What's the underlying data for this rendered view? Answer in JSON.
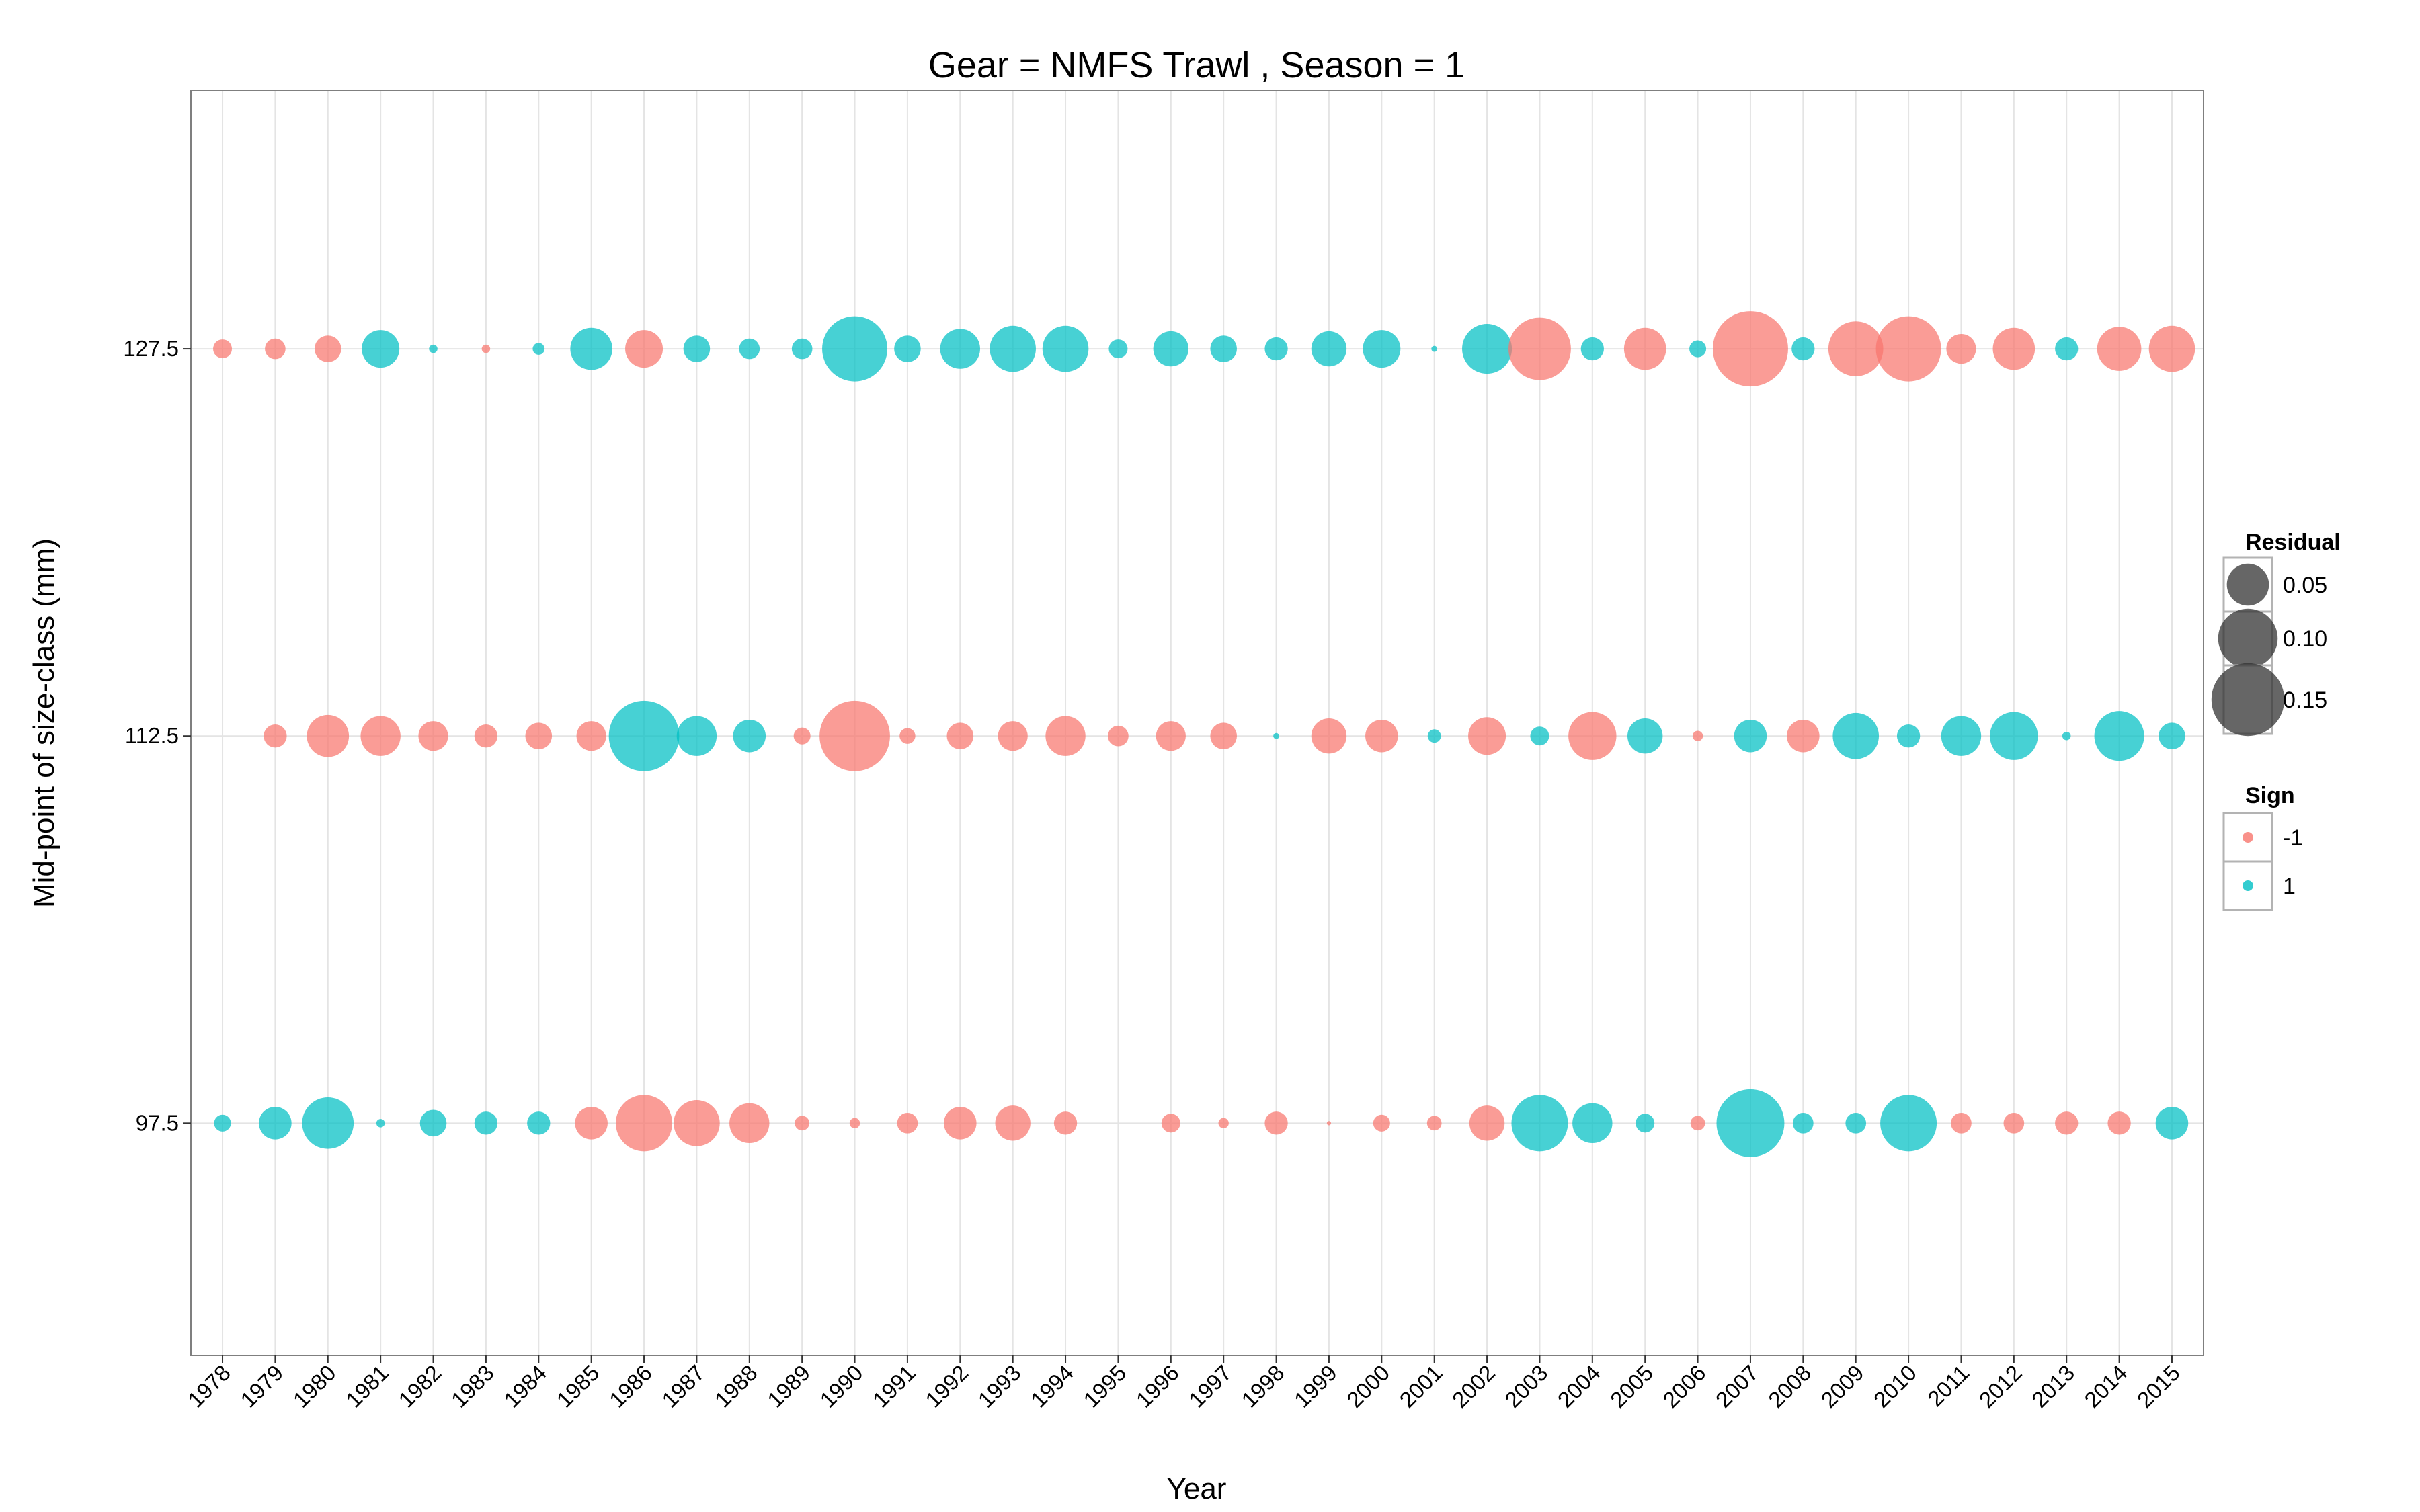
{
  "chart_data": {
    "type": "scatter",
    "title": "Gear = NMFS Trawl , Season = 1",
    "xlabel": "Year",
    "ylabel": "Mid-point of size-class (mm)",
    "x_categories": [
      "1978",
      "1979",
      "1980",
      "1981",
      "1982",
      "1983",
      "1984",
      "1985",
      "1986",
      "1987",
      "1988",
      "1989",
      "1990",
      "1991",
      "1992",
      "1993",
      "1994",
      "1995",
      "1996",
      "1997",
      "1998",
      "1999",
      "2000",
      "2001",
      "2002",
      "2003",
      "2004",
      "2005",
      "2006",
      "2007",
      "2008",
      "2009",
      "2010",
      "2011",
      "2012",
      "2013",
      "2014",
      "2015"
    ],
    "y_ticks": [
      "97.5",
      "112.5",
      "127.5"
    ],
    "y_tick_values": [
      97.5,
      112.5,
      127.5
    ],
    "ylim": [
      88.5,
      137.5
    ],
    "grid": true,
    "colors": {
      "neg": "#F8766D",
      "pos": "#00BFC4"
    },
    "legend": {
      "position": "right",
      "residual_title": "Residual",
      "residual_keys": [
        {
          "label": "0.05",
          "value": 0.05
        },
        {
          "label": "0.10",
          "value": 0.1
        },
        {
          "label": "0.15",
          "value": 0.15
        }
      ],
      "sign_title": "Sign",
      "sign_keys": [
        {
          "label": "-1",
          "sign": -1
        },
        {
          "label": "1",
          "sign": 1
        }
      ]
    },
    "series": [
      {
        "y": 127.5,
        "residuals": [
          0.01,
          0.012,
          0.02,
          0.04,
          0.002,
          0.002,
          0.004,
          0.05,
          0.04,
          0.02,
          0.012,
          0.012,
          0.12,
          0.02,
          0.045,
          0.06,
          0.06,
          0.01,
          0.035,
          0.02,
          0.015,
          0.035,
          0.04,
          0.001,
          0.07,
          0.11,
          0.015,
          0.05,
          0.008,
          0.16,
          0.015,
          0.085,
          0.12,
          0.025,
          0.05,
          0.015,
          0.055,
          0.06
        ],
        "signs": [
          -1,
          -1,
          -1,
          1,
          1,
          -1,
          1,
          1,
          -1,
          1,
          1,
          1,
          1,
          1,
          1,
          1,
          1,
          1,
          1,
          1,
          1,
          1,
          1,
          1,
          1,
          -1,
          1,
          -1,
          1,
          -1,
          1,
          -1,
          -1,
          -1,
          -1,
          1,
          -1,
          -1
        ]
      },
      {
        "y": 112.5,
        "residuals": [
          0,
          0.015,
          0.05,
          0.045,
          0.025,
          0.015,
          0.02,
          0.025,
          0.14,
          0.045,
          0.03,
          0.008,
          0.14,
          0.007,
          0.02,
          0.025,
          0.045,
          0.012,
          0.025,
          0.02,
          0.001,
          0.035,
          0.03,
          0.005,
          0.04,
          0.01,
          0.065,
          0.035,
          0.003,
          0.03,
          0.03,
          0.06,
          0.015,
          0.045,
          0.065,
          0.002,
          0.07,
          0.02
        ],
        "signs": [
          -1,
          -1,
          -1,
          -1,
          -1,
          -1,
          -1,
          -1,
          1,
          1,
          1,
          -1,
          -1,
          -1,
          -1,
          -1,
          -1,
          -1,
          -1,
          -1,
          1,
          -1,
          -1,
          1,
          -1,
          1,
          -1,
          1,
          -1,
          1,
          -1,
          1,
          1,
          1,
          1,
          1,
          1,
          1
        ]
      },
      {
        "y": 97.5,
        "residuals": [
          0.008,
          0.03,
          0.075,
          0.002,
          0.02,
          0.015,
          0.015,
          0.03,
          0.09,
          0.06,
          0.045,
          0.006,
          0.003,
          0.012,
          0.03,
          0.035,
          0.015,
          0,
          0.01,
          0.003,
          0.015,
          0.0005,
          0.008,
          0.006,
          0.035,
          0.09,
          0.045,
          0.01,
          0.006,
          0.13,
          0.012,
          0.012,
          0.09,
          0.012,
          0.012,
          0.015,
          0.015,
          0.03
        ],
        "signs": [
          1,
          1,
          1,
          1,
          1,
          1,
          1,
          -1,
          -1,
          -1,
          -1,
          -1,
          -1,
          -1,
          -1,
          -1,
          -1,
          1,
          -1,
          -1,
          -1,
          -1,
          -1,
          -1,
          -1,
          1,
          1,
          1,
          -1,
          1,
          1,
          1,
          1,
          -1,
          -1,
          -1,
          -1,
          1
        ]
      }
    ]
  }
}
